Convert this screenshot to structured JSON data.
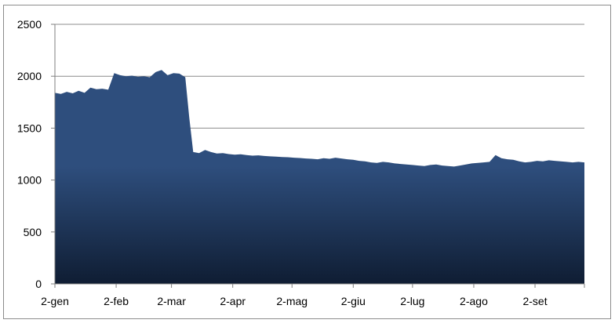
{
  "chart_data": {
    "type": "area",
    "title": "",
    "xlabel": "",
    "ylabel": "",
    "ylim": [
      0,
      2500
    ],
    "yticks": [
      0,
      500,
      1000,
      1500,
      2000,
      2500
    ],
    "xlim": [
      0,
      268
    ],
    "x_tick_positions": [
      0,
      31,
      59,
      90,
      120,
      151,
      181,
      212,
      243
    ],
    "x_tick_labels": [
      "2-gen",
      "2-feb",
      "2-mar",
      "2-apr",
      "2-mag",
      "2-giu",
      "2-lug",
      "2-ago",
      "2-set"
    ],
    "grid": "horizontal",
    "legend": "none",
    "fill_top_color": "#2e4e7d",
    "fill_bottom_color": "#0f1d33",
    "grid_color": "#8c8c8c",
    "series": [
      {
        "x": [
          0,
          3,
          6,
          9,
          12,
          15,
          18,
          21,
          24,
          27,
          30,
          33,
          36,
          39,
          42,
          45,
          48,
          51,
          54,
          57,
          60,
          63,
          66,
          68,
          70,
          73,
          76,
          79,
          82,
          85,
          88,
          91,
          94,
          97,
          100,
          103,
          106,
          109,
          112,
          115,
          118,
          121,
          124,
          127,
          130,
          133,
          136,
          139,
          142,
          145,
          148,
          151,
          154,
          157,
          160,
          163,
          166,
          169,
          172,
          175,
          178,
          181,
          184,
          187,
          190,
          193,
          196,
          199,
          202,
          205,
          208,
          211,
          214,
          217,
          220,
          223,
          226,
          229,
          232,
          235,
          238,
          241,
          244,
          247,
          250,
          253,
          256,
          259,
          262,
          265,
          268
        ],
        "values": [
          1840,
          1830,
          1850,
          1835,
          1860,
          1840,
          1890,
          1875,
          1880,
          1870,
          2030,
          2010,
          2000,
          2005,
          1995,
          2000,
          1990,
          2040,
          2060,
          2010,
          2030,
          2025,
          1990,
          1600,
          1270,
          1260,
          1290,
          1270,
          1255,
          1260,
          1250,
          1245,
          1248,
          1240,
          1235,
          1238,
          1232,
          1228,
          1225,
          1222,
          1220,
          1215,
          1212,
          1208,
          1205,
          1200,
          1210,
          1205,
          1215,
          1208,
          1200,
          1195,
          1185,
          1180,
          1170,
          1165,
          1175,
          1170,
          1160,
          1155,
          1150,
          1145,
          1140,
          1135,
          1145,
          1150,
          1140,
          1135,
          1130,
          1140,
          1150,
          1160,
          1165,
          1170,
          1175,
          1240,
          1210,
          1200,
          1195,
          1180,
          1170,
          1175,
          1185,
          1180,
          1190,
          1185,
          1180,
          1175,
          1170,
          1175,
          1170
        ]
      }
    ]
  }
}
